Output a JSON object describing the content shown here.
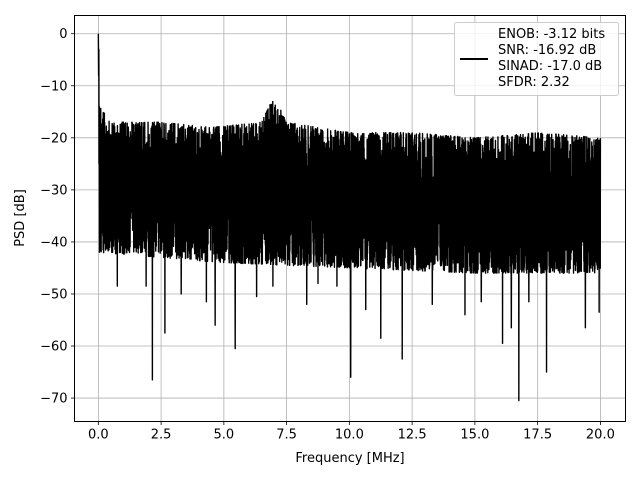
{
  "chart_data": {
    "type": "line",
    "title": "",
    "xlabel": "Frequency [MHz]",
    "ylabel": "PSD [dB]",
    "xlim": [
      -0.95,
      21.0
    ],
    "ylim": [
      -74.5,
      3.5
    ],
    "xticks": [
      0.0,
      2.5,
      5.0,
      7.5,
      10.0,
      12.5,
      15.0,
      17.5,
      20.0
    ],
    "xtick_labels": [
      "0.0",
      "2.5",
      "5.0",
      "7.5",
      "10.0",
      "12.5",
      "15.0",
      "17.5",
      "20.0"
    ],
    "yticks": [
      0,
      -10,
      -20,
      -30,
      -40,
      -50,
      -60,
      -70
    ],
    "ytick_labels": [
      "0",
      "−10",
      "−20",
      "−30",
      "−40",
      "−50",
      "−60",
      "−70"
    ],
    "grid": true,
    "legend_position": "top-right",
    "legend_lines": [
      "ENOB: -3.12 bits",
      "SNR: -16.92 dB",
      "SINAD: -17.0 dB",
      "SFDR: 2.32"
    ],
    "series": [
      {
        "color": "#000000",
        "x_range": [
          0.0,
          20.0
        ],
        "peak": {
          "x": 0.0,
          "y": 0.0
        },
        "noise_upper_envelope": [
          [
            0.05,
            -14
          ],
          [
            0.5,
            -17
          ],
          [
            2.5,
            -17
          ],
          [
            4.5,
            -18
          ],
          [
            6.5,
            -17
          ],
          [
            7.0,
            -12
          ],
          [
            7.5,
            -17
          ],
          [
            10.0,
            -19
          ],
          [
            12.5,
            -19
          ],
          [
            15.0,
            -20
          ],
          [
            17.5,
            -19
          ],
          [
            20.0,
            -20
          ]
        ],
        "noise_lower_envelope": [
          [
            0.05,
            -42
          ],
          [
            2.5,
            -43
          ],
          [
            5.0,
            -44
          ],
          [
            10.0,
            -45
          ],
          [
            15.0,
            -46
          ],
          [
            20.0,
            -46
          ]
        ],
        "deep_minima": [
          [
            0.75,
            -48.5
          ],
          [
            1.9,
            -48.5
          ],
          [
            2.15,
            -66.5
          ],
          [
            2.65,
            -57.5
          ],
          [
            3.3,
            -50
          ],
          [
            4.3,
            -51.5
          ],
          [
            4.65,
            -56
          ],
          [
            5.45,
            -60.5
          ],
          [
            6.3,
            -50.5
          ],
          [
            6.95,
            -48.5
          ],
          [
            8.3,
            -52
          ],
          [
            8.75,
            -48
          ],
          [
            9.5,
            -48.5
          ],
          [
            10.05,
            -66
          ],
          [
            10.65,
            -53
          ],
          [
            11.25,
            -58.5
          ],
          [
            12.1,
            -62.5
          ],
          [
            13.3,
            -52
          ],
          [
            14.6,
            -54
          ],
          [
            15.25,
            -51.5
          ],
          [
            16.1,
            -59.5
          ],
          [
            16.45,
            -56.5
          ],
          [
            16.75,
            -70.5
          ],
          [
            17.15,
            -51.5
          ],
          [
            17.85,
            -65
          ],
          [
            19.4,
            -56.5
          ],
          [
            19.95,
            -53.5
          ]
        ]
      }
    ]
  }
}
